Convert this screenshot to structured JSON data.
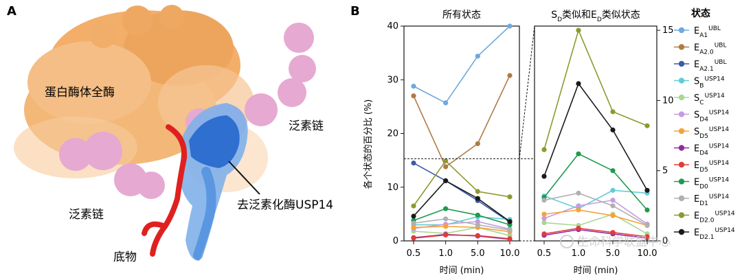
{
  "panel_a": {
    "letter": "A",
    "labels": {
      "proteasome": "蛋白酶体全酶",
      "ubiquitin_right": "泛素链",
      "ubiquitin_left": "泛素链",
      "usp14": "去泛素化酶USP14",
      "substrate": "底物"
    },
    "colors": {
      "proteasome": "#f2a659",
      "ubiquitin": "#e6a9d1",
      "usp14": "#3b7dd8",
      "substrate": "#e02020"
    }
  },
  "panel_b": {
    "letter": "B",
    "legend_title": "状态",
    "watermark": "生命科学联盟中心",
    "legend": [
      {
        "base": "E",
        "sub": "A1",
        "sup": "UBL",
        "color": "#6fa8dc"
      },
      {
        "base": "E",
        "sub": "A2.0",
        "sup": "UBL",
        "color": "#b07a45"
      },
      {
        "base": "E",
        "sub": "A2.1",
        "sup": "UBL",
        "color": "#3a5ba8"
      },
      {
        "base": "S",
        "sub": "B",
        "sup": "USP14",
        "color": "#62ccd9"
      },
      {
        "base": "S",
        "sub": "C",
        "sup": "USP14",
        "color": "#a8d890"
      },
      {
        "base": "S",
        "sub": "D4",
        "sup": "USP14",
        "color": "#c79be0"
      },
      {
        "base": "S",
        "sub": "D5",
        "sup": "USP14",
        "color": "#f5a23a"
      },
      {
        "base": "E",
        "sub": "D4",
        "sup": "USP14",
        "color": "#8e2da0"
      },
      {
        "base": "E",
        "sub": "D5",
        "sup": "USP14",
        "color": "#e53a3a"
      },
      {
        "base": "E",
        "sub": "D0",
        "sup": "USP14",
        "color": "#1f9a4e"
      },
      {
        "base": "E",
        "sub": "D1",
        "sup": "USP14",
        "color": "#b0b0b0"
      },
      {
        "base": "E",
        "sub": "D2.0",
        "sup": "USP14",
        "color": "#8c9a2e"
      },
      {
        "base": "E",
        "sub": "D2.1",
        "sup": "USP14",
        "color": "#1a1a1a"
      }
    ]
  },
  "chart_data": [
    {
      "type": "line",
      "title": "所有状态",
      "xlabel": "时间 (min)",
      "ylabel": "各个状态的百分比 (%)",
      "categories": [
        "0.5",
        "1.0",
        "5.0",
        "10.0"
      ],
      "ylim": [
        0,
        40
      ],
      "yticks": [
        0,
        10,
        20,
        30,
        40
      ],
      "series": [
        {
          "name": "EA1 UBL",
          "values": [
            28.8,
            25.7,
            34.4,
            40.0
          ]
        },
        {
          "name": "EA2.0 UBL",
          "values": [
            27.0,
            13.8,
            18.1,
            30.8
          ]
        },
        {
          "name": "EA2.1 UBL",
          "values": [
            14.5,
            11.2,
            7.5,
            3.5
          ]
        },
        {
          "name": "SB USP14",
          "values": [
            3.0,
            3.0,
            4.5,
            4.0
          ]
        },
        {
          "name": "SC USP14",
          "values": [
            1.8,
            1.4,
            2.5,
            1.0
          ]
        },
        {
          "name": "SD4 USP14",
          "values": [
            2.3,
            3.1,
            3.6,
            2.2
          ]
        },
        {
          "name": "SD5 USP14",
          "values": [
            2.5,
            2.7,
            2.5,
            1.7
          ]
        },
        {
          "name": "ED4 USP14",
          "values": [
            0.6,
            1.2,
            0.9,
            0.3
          ]
        },
        {
          "name": "ED5 USP14",
          "values": [
            0.5,
            1.1,
            1.0,
            0.4
          ]
        },
        {
          "name": "ED0 USP14",
          "values": [
            3.8,
            6.0,
            4.8,
            3.0
          ]
        },
        {
          "name": "ED1 USP14",
          "values": [
            3.3,
            4.1,
            3.0,
            2.0
          ]
        },
        {
          "name": "ED2.0 USP14",
          "values": [
            6.5,
            14.9,
            9.2,
            8.2
          ]
        },
        {
          "name": "ED2.1 USP14",
          "values": [
            4.6,
            11.2,
            7.9,
            3.6
          ]
        }
      ]
    },
    {
      "type": "line",
      "title": "SD类似和ED类似状态",
      "title_parts": [
        {
          "base": "S",
          "sub": "D"
        },
        {
          "text": "类似和"
        },
        {
          "base": "E",
          "sub": "D"
        },
        {
          "text": "类似状态"
        }
      ],
      "xlabel": "时间 (min)",
      "categories": [
        "0.5",
        "1.0",
        "5.0",
        "10.0"
      ],
      "ylim": [
        0,
        15.3
      ],
      "yticks": [
        0,
        5,
        10,
        15
      ],
      "series": [
        {
          "name": "SB USP14",
          "values": [
            3.2,
            2.3,
            3.6,
            3.4
          ]
        },
        {
          "name": "SC USP14",
          "values": [
            1.3,
            1.1,
            1.9,
            0.5
          ]
        },
        {
          "name": "SD4 USP14",
          "values": [
            1.6,
            2.5,
            2.9,
            1.2
          ]
        },
        {
          "name": "SD5 USP14",
          "values": [
            1.9,
            2.2,
            1.8,
            1.1
          ]
        },
        {
          "name": "ED4 USP14",
          "values": [
            0.4,
            0.8,
            0.5,
            0.2
          ]
        },
        {
          "name": "ED5 USP14",
          "values": [
            0.5,
            0.9,
            0.6,
            0.3
          ]
        },
        {
          "name": "ED0 USP14",
          "values": [
            3.1,
            6.2,
            5.0,
            2.2
          ]
        },
        {
          "name": "ED1 USP14",
          "values": [
            2.9,
            3.4,
            2.5,
            1.1
          ]
        },
        {
          "name": "ED2.0 USP14",
          "values": [
            6.5,
            15.0,
            9.2,
            8.2
          ]
        },
        {
          "name": "ED2.1 USP14",
          "values": [
            4.6,
            11.2,
            7.9,
            3.6
          ]
        }
      ]
    }
  ]
}
